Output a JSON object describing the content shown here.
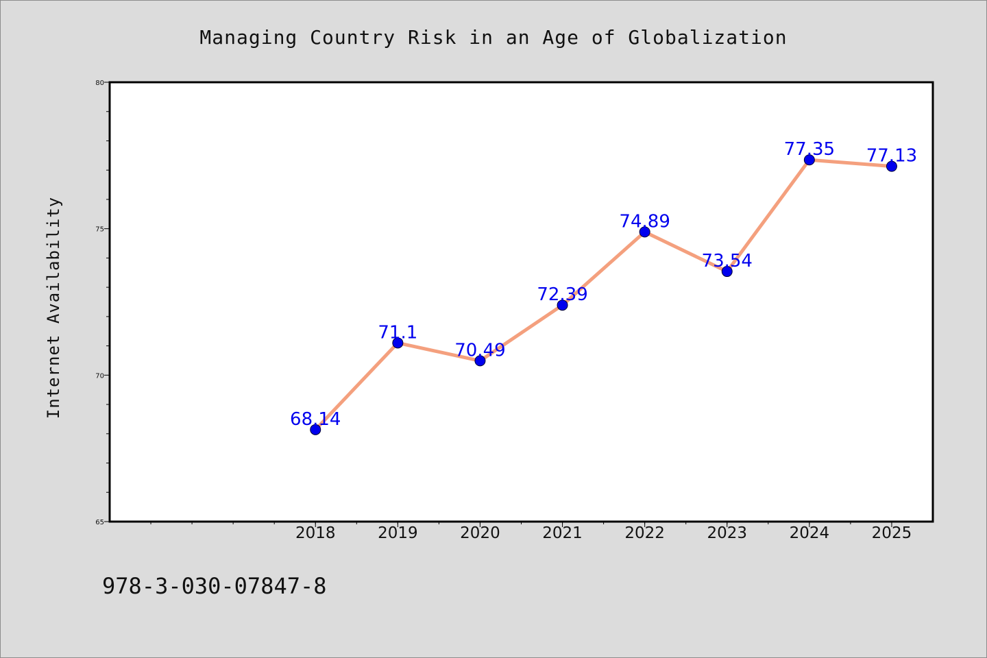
{
  "chart_data": {
    "type": "line",
    "title": "Managing Country Risk in an Age of Globalization",
    "ylabel": "Internet Availability",
    "xlabel": "",
    "categories": [
      "2018",
      "2019",
      "2020",
      "2021",
      "2022",
      "2023",
      "2024",
      "2025"
    ],
    "series": [
      {
        "values": [
          68.14,
          71.1,
          70.49,
          72.39,
          74.89,
          73.54,
          77.35,
          77.13
        ],
        "labels": [
          "68.14",
          "71.1",
          "70.49",
          "72.39",
          "74.89",
          "73.54",
          "77.35",
          "77.13"
        ]
      }
    ],
    "ylim": [
      65,
      80
    ],
    "yticks": [
      "65",
      "70",
      "75",
      "80"
    ],
    "grid": false,
    "legend": "none",
    "colors": {
      "line": "#f4a07e",
      "marker": "#0000ee",
      "data_label": "#0000ee",
      "background": "#dcdcdc",
      "plot_background": "#ffffff"
    },
    "footer_text": "978-3-030-07847-8"
  }
}
